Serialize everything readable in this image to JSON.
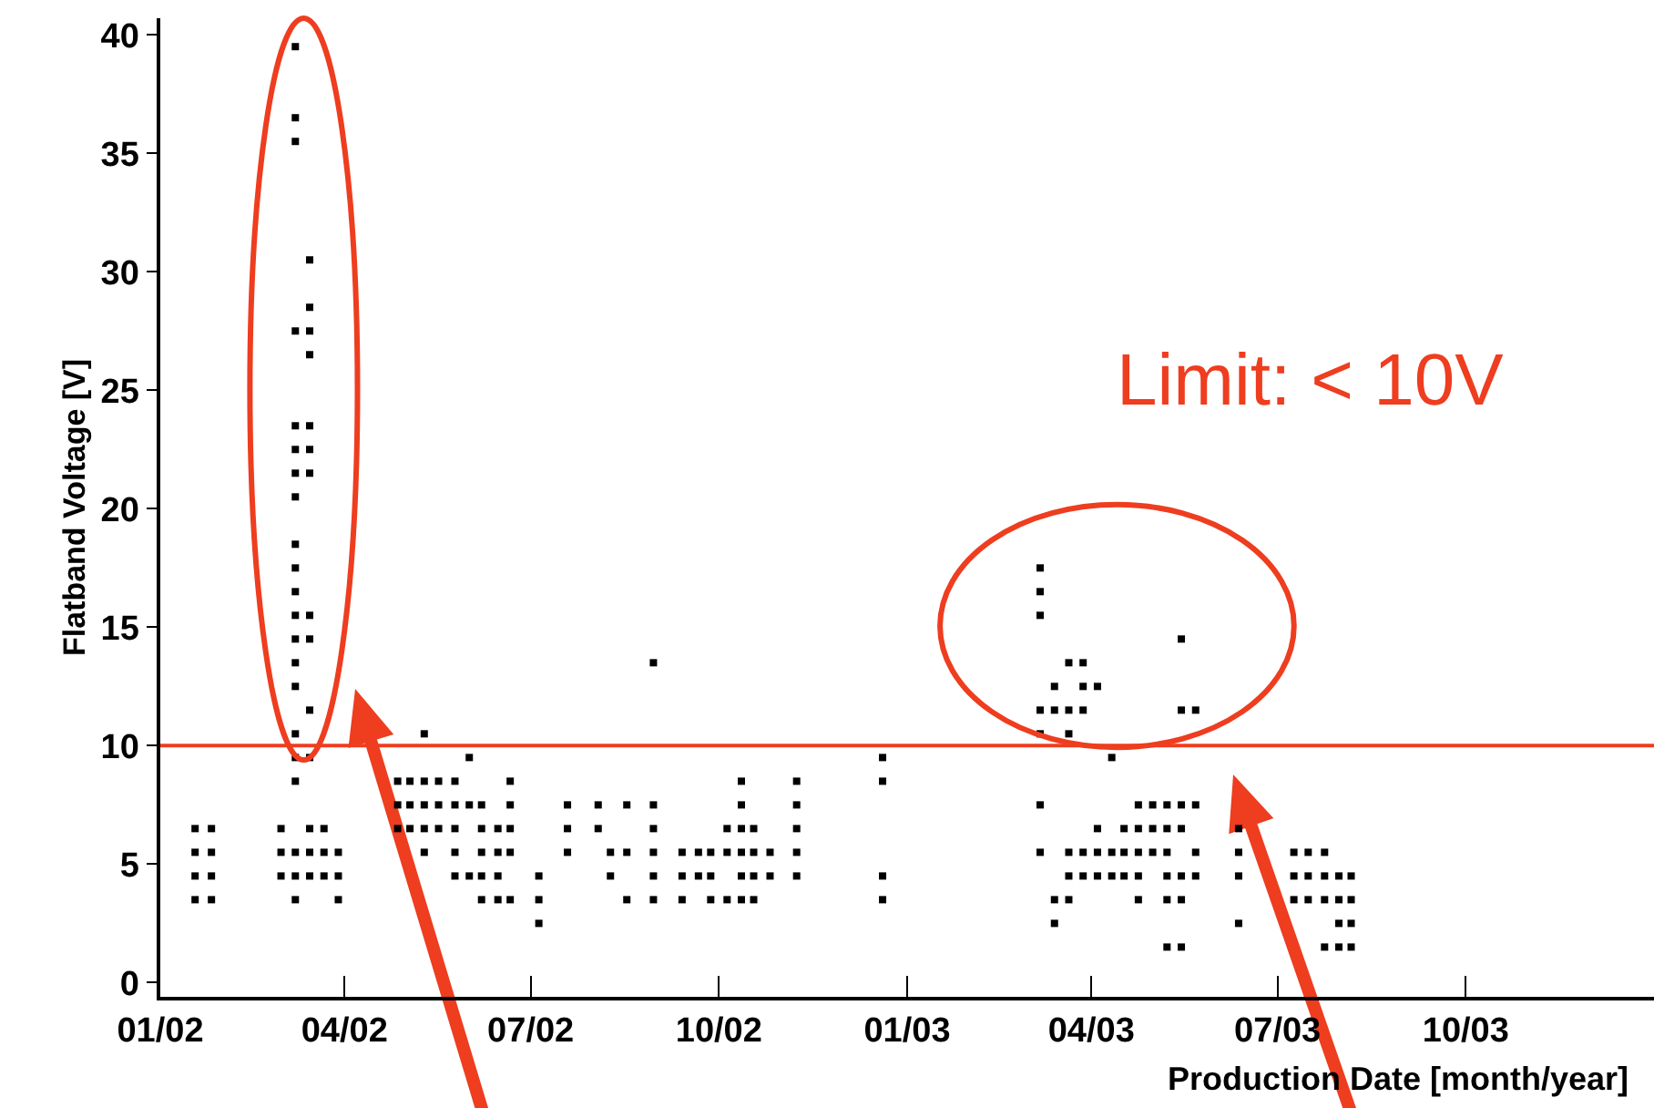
{
  "chart_data": {
    "type": "scatter",
    "xlabel": "Production Date [month/year]",
    "ylabel": "Flatband Voltage [V]",
    "annotations": [
      "Limit: < 10V"
    ],
    "ref_lines": [
      {
        "axis": "y",
        "value": 10,
        "color": "#ee3d1f"
      }
    ],
    "xlim": [
      "2002-01-01",
      "2004-01-01"
    ],
    "xticks": [
      {
        "value": "2002-01-01",
        "label": "01/02"
      },
      {
        "value": "2002-04-01",
        "label": "04/02"
      },
      {
        "value": "2002-07-01",
        "label": "07/02"
      },
      {
        "value": "2002-10-01",
        "label": "10/02"
      },
      {
        "value": "2003-01-01",
        "label": "01/03"
      },
      {
        "value": "2003-04-01",
        "label": "04/03"
      },
      {
        "value": "2003-07-01",
        "label": "07/03"
      },
      {
        "value": "2003-10-01",
        "label": "10/03"
      }
    ],
    "ylim": [
      -0.6,
      40.7
    ],
    "yticks": [
      0,
      5,
      10,
      15,
      20,
      25,
      30,
      35,
      40
    ],
    "marker": "square",
    "series": [
      {
        "color": "#000000",
        "x": [
          "2002-01-18",
          "2002-01-18",
          "2002-01-18",
          "2002-01-18",
          "2002-01-26",
          "2002-01-26",
          "2002-01-26",
          "2002-01-26",
          "2002-03-01",
          "2002-03-01",
          "2002-03-01",
          "2002-03-08",
          "2002-03-08",
          "2002-03-08",
          "2002-03-08",
          "2002-03-08",
          "2002-03-08",
          "2002-03-08",
          "2002-03-08",
          "2002-03-08",
          "2002-03-08",
          "2002-03-08",
          "2002-03-08",
          "2002-03-08",
          "2002-03-08",
          "2002-03-08",
          "2002-03-08",
          "2002-03-08",
          "2002-03-08",
          "2002-03-08",
          "2002-03-08",
          "2002-03-08",
          "2002-03-15",
          "2002-03-15",
          "2002-03-15",
          "2002-03-15",
          "2002-03-15",
          "2002-03-15",
          "2002-03-15",
          "2002-03-15",
          "2002-03-15",
          "2002-03-15",
          "2002-03-15",
          "2002-03-15",
          "2002-03-15",
          "2002-03-15",
          "2002-03-22",
          "2002-03-22",
          "2002-03-22",
          "2002-03-29",
          "2002-03-29",
          "2002-03-29",
          "2002-04-27",
          "2002-04-27",
          "2002-04-27",
          "2002-05-03",
          "2002-05-03",
          "2002-05-03",
          "2002-05-10",
          "2002-05-10",
          "2002-05-10",
          "2002-05-10",
          "2002-05-10",
          "2002-05-17",
          "2002-05-17",
          "2002-05-17",
          "2002-05-25",
          "2002-05-25",
          "2002-05-25",
          "2002-05-25",
          "2002-05-25",
          "2002-06-01",
          "2002-06-01",
          "2002-06-01",
          "2002-06-07",
          "2002-06-07",
          "2002-06-07",
          "2002-06-07",
          "2002-06-07",
          "2002-06-15",
          "2002-06-15",
          "2002-06-15",
          "2002-06-15",
          "2002-06-21",
          "2002-06-21",
          "2002-06-21",
          "2002-06-21",
          "2002-06-21",
          "2002-07-05",
          "2002-07-05",
          "2002-07-05",
          "2002-07-19",
          "2002-07-19",
          "2002-07-19",
          "2002-08-03",
          "2002-08-03",
          "2002-08-09",
          "2002-08-09",
          "2002-08-17",
          "2002-08-17",
          "2002-08-17",
          "2002-08-30",
          "2002-08-30",
          "2002-08-30",
          "2002-08-30",
          "2002-08-30",
          "2002-08-30",
          "2002-09-13",
          "2002-09-13",
          "2002-09-13",
          "2002-09-21",
          "2002-09-21",
          "2002-09-27",
          "2002-09-27",
          "2002-09-27",
          "2002-10-05",
          "2002-10-05",
          "2002-10-05",
          "2002-10-12",
          "2002-10-12",
          "2002-10-12",
          "2002-10-12",
          "2002-10-12",
          "2002-10-12",
          "2002-10-18",
          "2002-10-18",
          "2002-10-18",
          "2002-10-18",
          "2002-10-26",
          "2002-10-26",
          "2002-11-08",
          "2002-11-08",
          "2002-11-08",
          "2002-11-08",
          "2002-11-08",
          "2002-12-20",
          "2002-12-20",
          "2002-12-20",
          "2002-12-20",
          "2003-03-07",
          "2003-03-07",
          "2003-03-07",
          "2003-03-07",
          "2003-03-07",
          "2003-03-07",
          "2003-03-07",
          "2003-03-14",
          "2003-03-14",
          "2003-03-14",
          "2003-03-14",
          "2003-03-21",
          "2003-03-21",
          "2003-03-21",
          "2003-03-21",
          "2003-03-21",
          "2003-03-21",
          "2003-03-28",
          "2003-03-28",
          "2003-03-28",
          "2003-03-28",
          "2003-03-28",
          "2003-04-04",
          "2003-04-04",
          "2003-04-04",
          "2003-04-04",
          "2003-04-11",
          "2003-04-11",
          "2003-04-11",
          "2003-04-17",
          "2003-04-17",
          "2003-04-17",
          "2003-04-24",
          "2003-04-24",
          "2003-04-24",
          "2003-04-24",
          "2003-04-24",
          "2003-05-01",
          "2003-05-01",
          "2003-05-01",
          "2003-05-08",
          "2003-05-08",
          "2003-05-08",
          "2003-05-08",
          "2003-05-08",
          "2003-05-08",
          "2003-05-15",
          "2003-05-15",
          "2003-05-15",
          "2003-05-15",
          "2003-05-15",
          "2003-05-15",
          "2003-05-15",
          "2003-05-22",
          "2003-05-22",
          "2003-05-22",
          "2003-05-22",
          "2003-06-12",
          "2003-06-12",
          "2003-06-12",
          "2003-06-12",
          "2003-07-09",
          "2003-07-09",
          "2003-07-09",
          "2003-07-16",
          "2003-07-16",
          "2003-07-16",
          "2003-07-24",
          "2003-07-24",
          "2003-07-24",
          "2003-07-24",
          "2003-07-31",
          "2003-07-31",
          "2003-07-31",
          "2003-07-31",
          "2003-08-06",
          "2003-08-06",
          "2003-08-06",
          "2003-08-06"
        ],
        "values": [
          6.5,
          5.5,
          4.5,
          3.5,
          6.5,
          5.5,
          4.5,
          3.5,
          6.5,
          5.5,
          4.5,
          39.5,
          36.5,
          35.5,
          27.5,
          23.5,
          22.5,
          21.5,
          20.5,
          18.5,
          17.5,
          16.5,
          15.5,
          14.5,
          13.5,
          12.5,
          10.5,
          9.5,
          8.5,
          5.5,
          4.5,
          3.5,
          30.5,
          28.5,
          27.5,
          26.5,
          23.5,
          22.5,
          21.5,
          15.5,
          14.5,
          11.5,
          9.5,
          6.5,
          5.5,
          4.5,
          6.5,
          5.5,
          4.5,
          5.5,
          4.5,
          3.5,
          8.5,
          7.5,
          6.5,
          8.5,
          7.5,
          6.5,
          10.5,
          8.5,
          7.5,
          6.5,
          5.5,
          8.5,
          7.5,
          6.5,
          8.5,
          7.5,
          6.5,
          5.5,
          4.5,
          9.5,
          7.5,
          4.5,
          7.5,
          6.5,
          5.5,
          4.5,
          3.5,
          6.5,
          5.5,
          4.5,
          3.5,
          8.5,
          7.5,
          6.5,
          5.5,
          3.5,
          4.5,
          3.5,
          2.5,
          7.5,
          6.5,
          5.5,
          7.5,
          6.5,
          5.5,
          4.5,
          7.5,
          5.5,
          3.5,
          13.5,
          7.5,
          6.5,
          5.5,
          4.5,
          3.5,
          5.5,
          4.5,
          3.5,
          5.5,
          4.5,
          5.5,
          4.5,
          3.5,
          6.5,
          5.5,
          3.5,
          8.5,
          7.5,
          6.5,
          5.5,
          4.5,
          3.5,
          6.5,
          5.5,
          4.5,
          3.5,
          5.5,
          4.5,
          8.5,
          7.5,
          6.5,
          5.5,
          4.5,
          9.5,
          8.5,
          4.5,
          3.5,
          17.5,
          16.5,
          15.5,
          11.5,
          10.5,
          7.5,
          5.5,
          12.5,
          11.5,
          3.5,
          2.5,
          13.5,
          11.5,
          10.5,
          5.5,
          4.5,
          3.5,
          13.5,
          12.5,
          11.5,
          5.5,
          4.5,
          12.5,
          6.5,
          5.5,
          4.5,
          9.5,
          5.5,
          4.5,
          6.5,
          5.5,
          4.5,
          7.5,
          6.5,
          5.5,
          4.5,
          3.5,
          7.5,
          6.5,
          5.5,
          7.5,
          6.5,
          5.5,
          4.5,
          3.5,
          1.5,
          14.5,
          11.5,
          7.5,
          6.5,
          4.5,
          3.5,
          1.5,
          11.5,
          7.5,
          5.5,
          4.5,
          6.5,
          5.5,
          4.5,
          2.5,
          5.5,
          4.5,
          3.5,
          5.5,
          4.5,
          3.5,
          5.5,
          4.5,
          3.5,
          1.5,
          4.5,
          3.5,
          2.5,
          1.5,
          4.5,
          3.5,
          2.5,
          1.5
        ]
      }
    ]
  }
}
